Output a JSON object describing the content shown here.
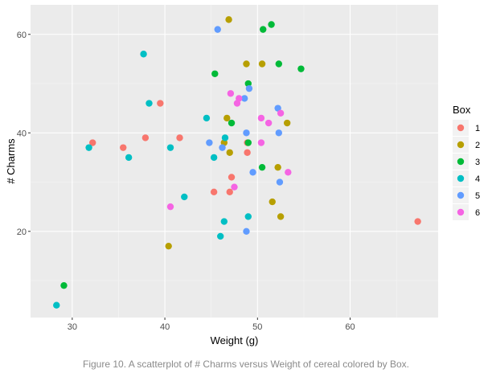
{
  "caption": "Figure 10. A scatterplot of # Charms versus Weight of cereal colored by Box.",
  "chart_data": {
    "type": "scatter",
    "xlabel": "Weight (g)",
    "ylabel": "# Charms",
    "xlim": [
      25.5,
      69.5
    ],
    "ylim": [
      2.5,
      66
    ],
    "x_ticks": [
      30,
      40,
      50,
      60
    ],
    "y_ticks": [
      20,
      40,
      60
    ],
    "grid": true,
    "legend": {
      "title": "Box",
      "placement": "right"
    },
    "series": [
      {
        "name": "1",
        "color": "#F8766D",
        "points": [
          {
            "x": 32.2,
            "y": 38
          },
          {
            "x": 35.5,
            "y": 37
          },
          {
            "x": 37.9,
            "y": 39
          },
          {
            "x": 39.5,
            "y": 46
          },
          {
            "x": 41.6,
            "y": 39
          },
          {
            "x": 45.3,
            "y": 28
          },
          {
            "x": 47.0,
            "y": 28
          },
          {
            "x": 47.2,
            "y": 31
          },
          {
            "x": 48.9,
            "y": 36
          },
          {
            "x": 48.9,
            "y": 38
          },
          {
            "x": 67.3,
            "y": 22
          }
        ]
      },
      {
        "name": "2",
        "color": "#B79F00",
        "points": [
          {
            "x": 40.4,
            "y": 17
          },
          {
            "x": 46.4,
            "y": 38
          },
          {
            "x": 46.7,
            "y": 43
          },
          {
            "x": 47.0,
            "y": 36
          },
          {
            "x": 46.9,
            "y": 63
          },
          {
            "x": 48.8,
            "y": 54
          },
          {
            "x": 50.5,
            "y": 54
          },
          {
            "x": 51.6,
            "y": 26
          },
          {
            "x": 52.2,
            "y": 33
          },
          {
            "x": 52.5,
            "y": 23
          },
          {
            "x": 53.2,
            "y": 42
          }
        ]
      },
      {
        "name": "3",
        "color": "#00BA38",
        "points": [
          {
            "x": 29.1,
            "y": 9
          },
          {
            "x": 45.4,
            "y": 52
          },
          {
            "x": 47.2,
            "y": 42
          },
          {
            "x": 49.0,
            "y": 38
          },
          {
            "x": 49.0,
            "y": 50
          },
          {
            "x": 50.5,
            "y": 33
          },
          {
            "x": 50.6,
            "y": 61
          },
          {
            "x": 51.5,
            "y": 62
          },
          {
            "x": 52.3,
            "y": 54
          },
          {
            "x": 54.7,
            "y": 53
          }
        ]
      },
      {
        "name": "4",
        "color": "#00BFC4",
        "points": [
          {
            "x": 28.3,
            "y": 5
          },
          {
            "x": 31.8,
            "y": 37
          },
          {
            "x": 36.1,
            "y": 35
          },
          {
            "x": 37.7,
            "y": 56
          },
          {
            "x": 38.3,
            "y": 46
          },
          {
            "x": 40.6,
            "y": 37
          },
          {
            "x": 42.1,
            "y": 27
          },
          {
            "x": 44.5,
            "y": 43
          },
          {
            "x": 45.3,
            "y": 35
          },
          {
            "x": 46.0,
            "y": 19
          },
          {
            "x": 46.4,
            "y": 22
          },
          {
            "x": 46.5,
            "y": 39
          },
          {
            "x": 49.0,
            "y": 23
          }
        ]
      },
      {
        "name": "5",
        "color": "#619CFF",
        "points": [
          {
            "x": 44.8,
            "y": 38
          },
          {
            "x": 45.7,
            "y": 61
          },
          {
            "x": 46.2,
            "y": 37
          },
          {
            "x": 48.6,
            "y": 47
          },
          {
            "x": 48.8,
            "y": 40
          },
          {
            "x": 48.8,
            "y": 20
          },
          {
            "x": 49.1,
            "y": 49
          },
          {
            "x": 49.5,
            "y": 32
          },
          {
            "x": 52.2,
            "y": 45
          },
          {
            "x": 52.3,
            "y": 40
          },
          {
            "x": 52.4,
            "y": 30
          }
        ]
      },
      {
        "name": "6",
        "color": "#F564E3",
        "points": [
          {
            "x": 40.6,
            "y": 25
          },
          {
            "x": 47.1,
            "y": 48
          },
          {
            "x": 47.5,
            "y": 29
          },
          {
            "x": 47.8,
            "y": 46
          },
          {
            "x": 48.0,
            "y": 47
          },
          {
            "x": 50.4,
            "y": 43
          },
          {
            "x": 50.4,
            "y": 38
          },
          {
            "x": 51.2,
            "y": 42
          },
          {
            "x": 52.5,
            "y": 44
          },
          {
            "x": 53.3,
            "y": 32
          }
        ]
      }
    ]
  }
}
